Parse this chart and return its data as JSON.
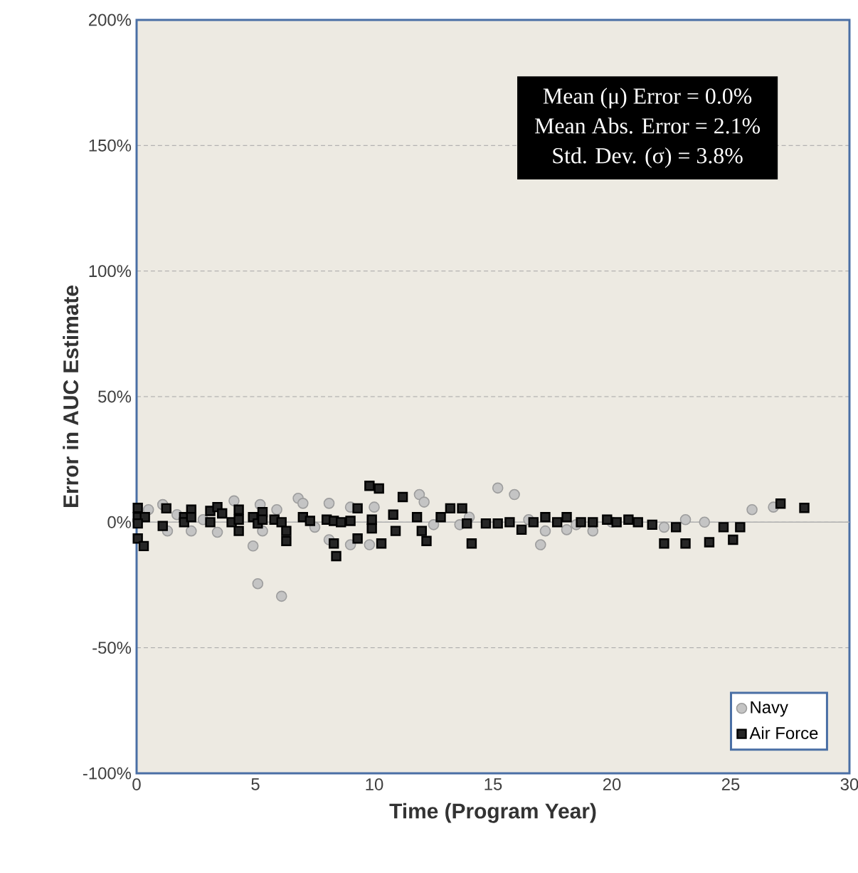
{
  "chart_data": {
    "type": "scatter",
    "xlabel": "Time (Program Year)",
    "ylabel": "Error in AUC Estimate",
    "xlim": [
      0,
      30
    ],
    "xticks": [
      0,
      5,
      10,
      15,
      20,
      25,
      30
    ],
    "ylim": [
      -100,
      200
    ],
    "yticks": [
      {
        "value": -100,
        "label": "-100%"
      },
      {
        "value": -50,
        "label": "-50%"
      },
      {
        "value": 0,
        "label": "0%"
      },
      {
        "value": 50,
        "label": "50%"
      },
      {
        "value": 100,
        "label": "100%"
      },
      {
        "value": 150,
        "label": "150%"
      },
      {
        "value": 200,
        "label": "200%"
      }
    ],
    "grid": "y",
    "legend": "bottom right",
    "ref_lines": [
      {
        "axis": "y",
        "value": 0,
        "color": "#b0b0b0"
      }
    ],
    "annotations": [
      "Mean (μ) Error = 0.0%",
      "Mean Abs. Error = 2.1%",
      "Std. Dev. (σ) = 3.8%"
    ],
    "series": [
      {
        "name": "Navy",
        "color": "#c4c4c4",
        "marker": "circle",
        "x": [
          0.5,
          1.1,
          1.3,
          1.7,
          2.3,
          3.4,
          4.1,
          4.9,
          5.1,
          6.1,
          5.2,
          6.8,
          7.0,
          8.1,
          8.1,
          9.0,
          9.0,
          5.9,
          5.3,
          9.8,
          10.0,
          11.9,
          12.1,
          15.2,
          15.9,
          17.0,
          17.2,
          18.1,
          19.2,
          12.5,
          14,
          16.5,
          18.5,
          20,
          22.2,
          23.1,
          23.9,
          25.9,
          26.8,
          2.8,
          7.5,
          13.6
        ],
        "values": [
          5,
          7,
          -3.5,
          3,
          -3.5,
          -4,
          8.5,
          -9.5,
          -24.5,
          -29.5,
          7,
          9.5,
          7.5,
          7.5,
          -7,
          6,
          -9,
          5,
          -3.5,
          -9,
          6,
          11,
          8,
          13.6,
          11,
          -9,
          -3.5,
          -3,
          -3.5,
          -1,
          2,
          1,
          -1,
          0,
          -2,
          1,
          0,
          5,
          6,
          1,
          -2,
          -1
        ]
      },
      {
        "name": "Air Force",
        "color": "#262626",
        "marker": "square",
        "x": [
          0.05,
          0.05,
          0.35,
          0.05,
          0.05,
          0.3,
          1.25,
          1.1,
          2.0,
          2.0,
          2.3,
          2.3,
          3.1,
          3.1,
          3.4,
          3.6,
          4.0,
          4.3,
          4.3,
          4.3,
          4.9,
          5.1,
          5.3,
          5.3,
          5.8,
          6.1,
          6.3,
          6.3,
          7.0,
          7.3,
          8.0,
          8.3,
          8.4,
          8.3,
          8.6,
          9.0,
          9.3,
          9.3,
          9.8,
          10.2,
          11.2,
          10.3,
          14.1,
          13.2,
          13.7,
          10.8,
          10.9,
          12.0,
          12.2,
          9.9,
          9.9,
          11.8,
          12.8,
          13.9,
          14.7,
          15.2,
          15.7,
          16.2,
          16.7,
          17.2,
          17.7,
          18.1,
          18.7,
          19.2,
          19.8,
          20.2,
          20.7,
          21.1,
          21.7,
          22.7,
          24.7,
          25.4,
          22.2,
          23.1,
          24.1,
          25.1,
          27.1,
          28.1
        ],
        "values": [
          5.7,
          2,
          2,
          -0.5,
          -6.5,
          -9.5,
          5.5,
          -1.5,
          2,
          0,
          5,
          2,
          4.5,
          0,
          6,
          3.5,
          0,
          5,
          1,
          -3.5,
          2,
          -0.5,
          4,
          1,
          1,
          0,
          -3.5,
          -7.5,
          2,
          0.5,
          1,
          -8.5,
          -13.5,
          0.5,
          0,
          0.5,
          5.5,
          -6.5,
          14.5,
          13.4,
          10,
          -8.5,
          -8.5,
          5.5,
          5.5,
          3,
          -3.5,
          -3.5,
          -7.5,
          1,
          -2.5,
          2,
          2,
          -0.5,
          -0.5,
          -0.5,
          0,
          -3,
          0,
          2,
          0,
          2,
          0,
          0,
          1,
          0,
          1,
          0,
          -1,
          -2,
          -2,
          -2,
          -8.5,
          -8.5,
          -8,
          -7,
          7.4,
          5.7
        ]
      }
    ]
  }
}
